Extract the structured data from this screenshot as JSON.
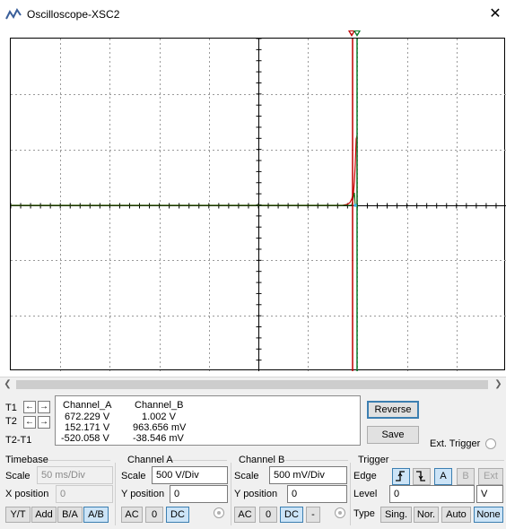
{
  "window": {
    "title": "Oscilloscope-XSC2",
    "close_icon": "close-icon"
  },
  "colors": {
    "trace_a": "#cc0000",
    "trace_b": "#006600",
    "cursor_t1": "#c00000",
    "cursor_t2": "#0a7a2a",
    "grid": "#9a9a9a"
  },
  "cursors": {
    "t1_label": "T1",
    "t2_label": "T2",
    "diff_label": "T2-T1"
  },
  "readout": {
    "col_a_header": "Channel_A",
    "col_b_header": "Channel_B",
    "t1": {
      "a": "672.229 V",
      "b": "1.002 V"
    },
    "t2": {
      "a": "152.171 V",
      "b": "963.656 mV"
    },
    "diff": {
      "a": "-520.058 V",
      "b": "-38.546 mV"
    }
  },
  "actions": {
    "reverse": "Reverse",
    "save": "Save",
    "ext_trigger": "Ext. Trigger"
  },
  "timebase": {
    "title": "Timebase",
    "scale_label": "Scale",
    "scale_value": "50 ms/Div",
    "xpos_label": "X position",
    "xpos_value": "0",
    "modes": [
      "Y/T",
      "Add",
      "B/A",
      "A/B"
    ]
  },
  "channel_a": {
    "title": "Channel A",
    "scale_label": "Scale",
    "scale_value": "500  V/Div",
    "ypos_label": "Y position",
    "ypos_value": "0",
    "coupling": [
      "AC",
      "0",
      "DC"
    ]
  },
  "channel_b": {
    "title": "Channel B",
    "scale_label": "Scale",
    "scale_value": "500 mV/Div",
    "ypos_label": "Y position",
    "ypos_value": "0",
    "coupling": [
      "AC",
      "0",
      "DC",
      "-"
    ]
  },
  "trigger": {
    "title": "Trigger",
    "edge_label": "Edge",
    "edge_buttons": [
      "A",
      "B",
      "Ext"
    ],
    "level_label": "Level",
    "level_value": "0",
    "level_unit": "V",
    "type_label": "Type",
    "types": [
      "Sing.",
      "Nor.",
      "Auto",
      "None"
    ]
  }
}
